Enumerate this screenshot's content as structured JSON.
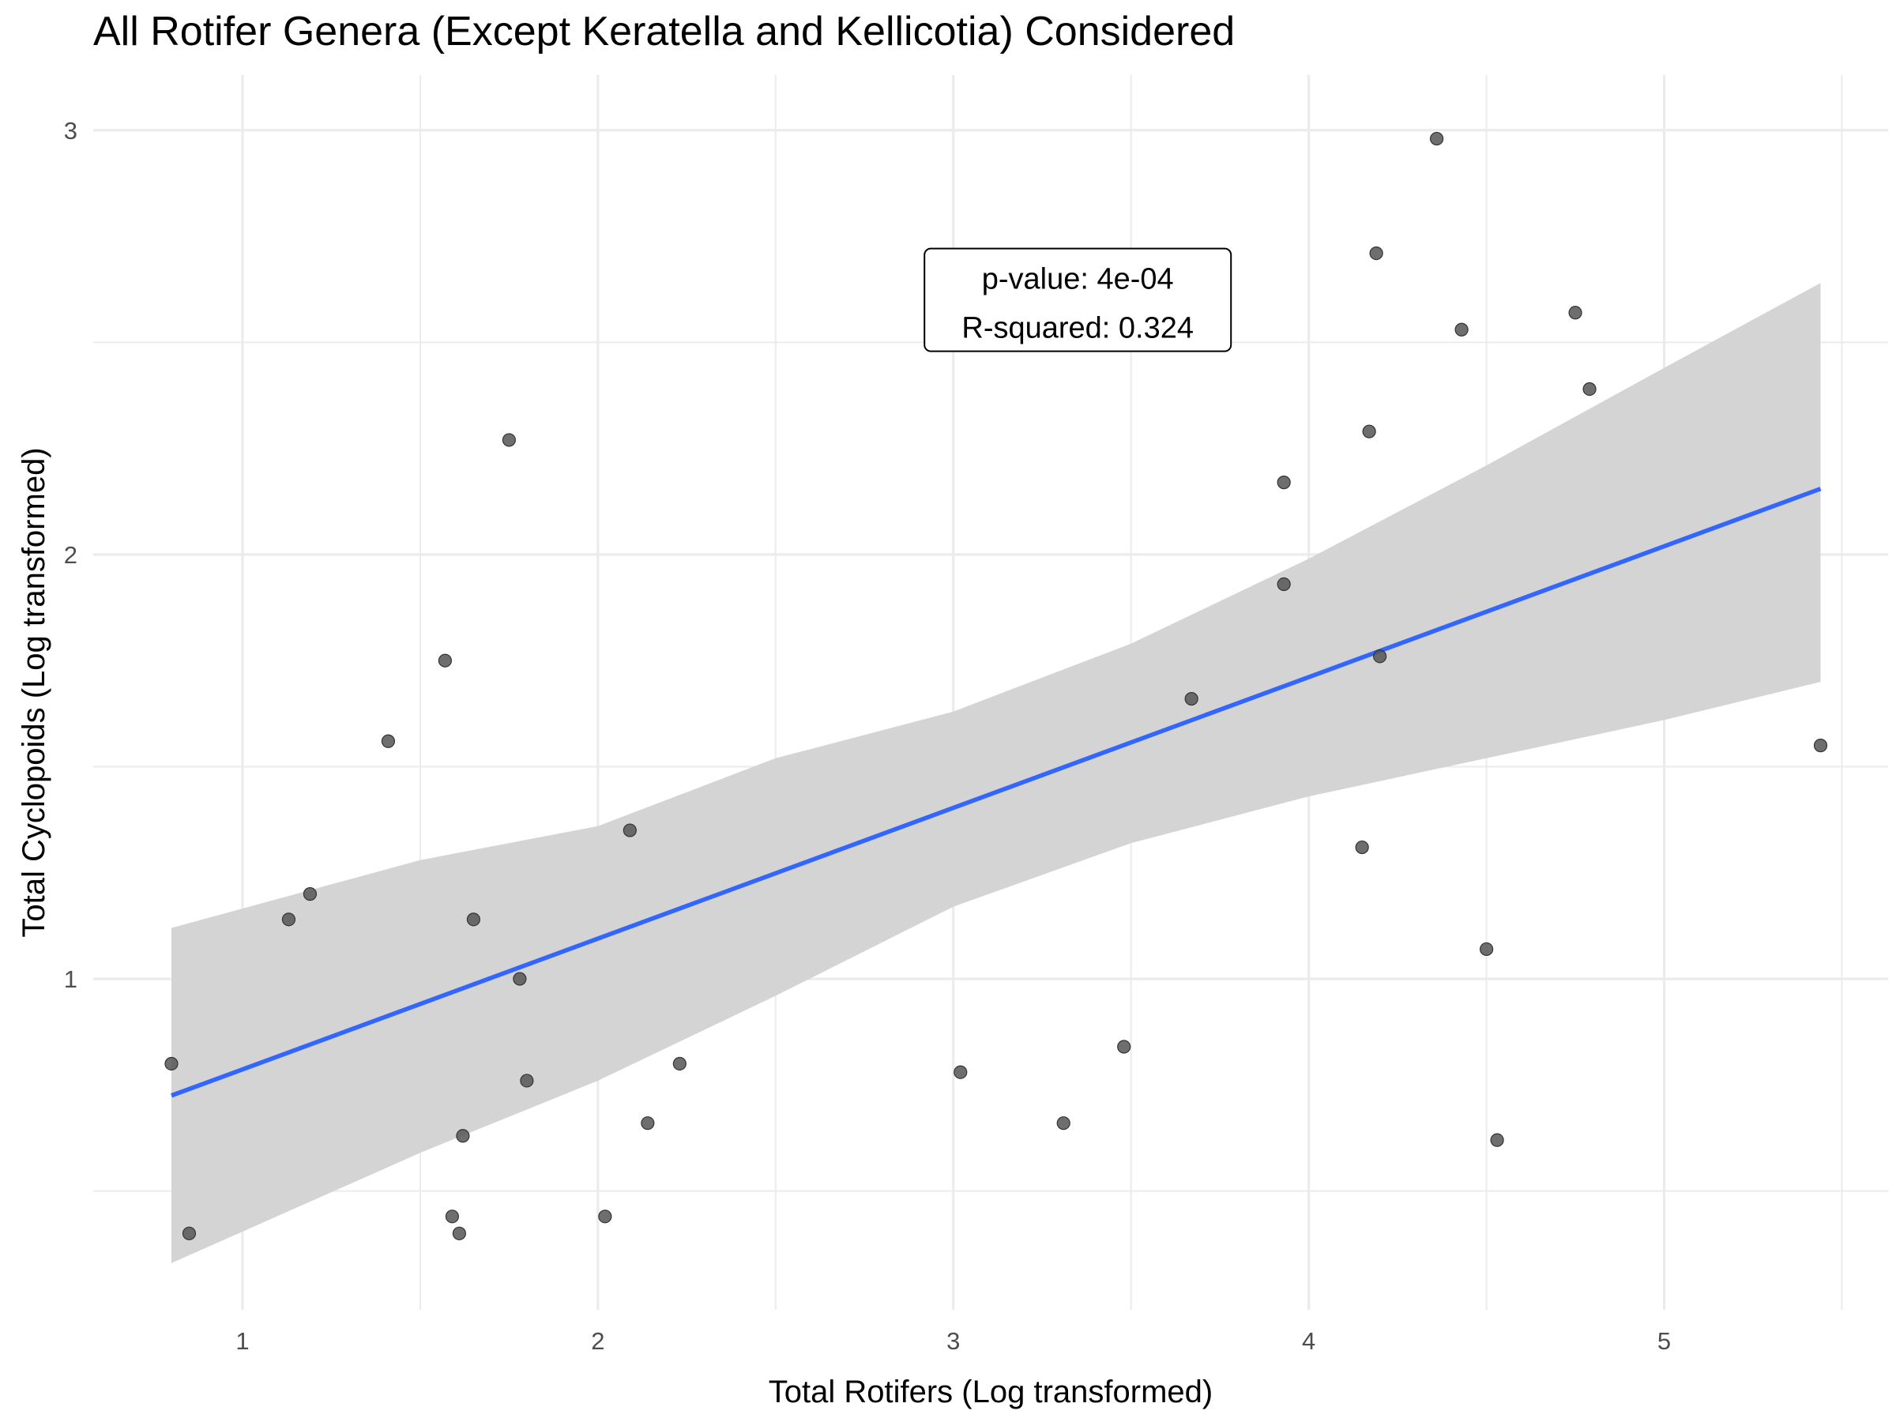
{
  "chart_data": {
    "type": "scatter",
    "title": "All Rotifer Genera (Except Keratella and Kellicotia) Considered",
    "xlabel": "Total Rotifers (Log transformed)",
    "ylabel": "Total Cyclopoids (Log transformed)",
    "xlim": [
      0.58,
      5.63
    ],
    "ylim": [
      0.22,
      3.13
    ],
    "x_ticks": [
      1,
      2,
      3,
      4,
      5
    ],
    "y_ticks": [
      1,
      2,
      3
    ],
    "grid": true,
    "points": [
      {
        "x": 0.8,
        "y": 0.8
      },
      {
        "x": 0.85,
        "y": 0.4
      },
      {
        "x": 1.13,
        "y": 1.14
      },
      {
        "x": 1.19,
        "y": 1.2
      },
      {
        "x": 1.41,
        "y": 1.56
      },
      {
        "x": 1.57,
        "y": 1.75
      },
      {
        "x": 1.59,
        "y": 0.44
      },
      {
        "x": 1.61,
        "y": 0.4
      },
      {
        "x": 1.62,
        "y": 0.63
      },
      {
        "x": 1.65,
        "y": 1.14
      },
      {
        "x": 1.75,
        "y": 2.27
      },
      {
        "x": 1.78,
        "y": 1.0
      },
      {
        "x": 1.8,
        "y": 0.76
      },
      {
        "x": 2.02,
        "y": 0.44
      },
      {
        "x": 2.09,
        "y": 1.35
      },
      {
        "x": 2.14,
        "y": 0.66
      },
      {
        "x": 2.23,
        "y": 0.8
      },
      {
        "x": 3.02,
        "y": 0.78
      },
      {
        "x": 3.31,
        "y": 0.66
      },
      {
        "x": 3.48,
        "y": 0.84
      },
      {
        "x": 3.67,
        "y": 1.66
      },
      {
        "x": 3.93,
        "y": 2.17
      },
      {
        "x": 3.93,
        "y": 1.93
      },
      {
        "x": 4.15,
        "y": 1.31
      },
      {
        "x": 4.17,
        "y": 2.29
      },
      {
        "x": 4.19,
        "y": 2.71
      },
      {
        "x": 4.2,
        "y": 1.76
      },
      {
        "x": 4.36,
        "y": 2.98
      },
      {
        "x": 4.43,
        "y": 2.53
      },
      {
        "x": 4.5,
        "y": 1.07
      },
      {
        "x": 4.53,
        "y": 0.62
      },
      {
        "x": 4.75,
        "y": 2.57
      },
      {
        "x": 4.79,
        "y": 2.39
      },
      {
        "x": 5.44,
        "y": 1.55
      }
    ],
    "fit": {
      "type": "linear",
      "x_start": 0.8,
      "y_start": 0.725,
      "x_end": 5.44,
      "y_end": 2.155,
      "ribbon": {
        "x": [
          0.8,
          1.5,
          2.0,
          2.5,
          3.0,
          3.5,
          4.0,
          4.5,
          5.0,
          5.44
        ],
        "lower": [
          0.33,
          0.59,
          0.76,
          0.96,
          1.17,
          1.32,
          1.43,
          1.52,
          1.61,
          1.7
        ],
        "upper": [
          1.12,
          1.28,
          1.36,
          1.52,
          1.63,
          1.79,
          1.99,
          2.21,
          2.44,
          2.64
        ]
      },
      "line_color": "#3366ff",
      "ribbon_color": "#d4d4d4"
    },
    "annotation": {
      "lines": [
        "p-value: 4e-04",
        "R-squared: 0.324"
      ],
      "x": 3.35,
      "y": 2.6
    }
  },
  "colors": {
    "point": "#555555",
    "grid": "#ebebeb",
    "tick_label": "#4d4d4d"
  }
}
